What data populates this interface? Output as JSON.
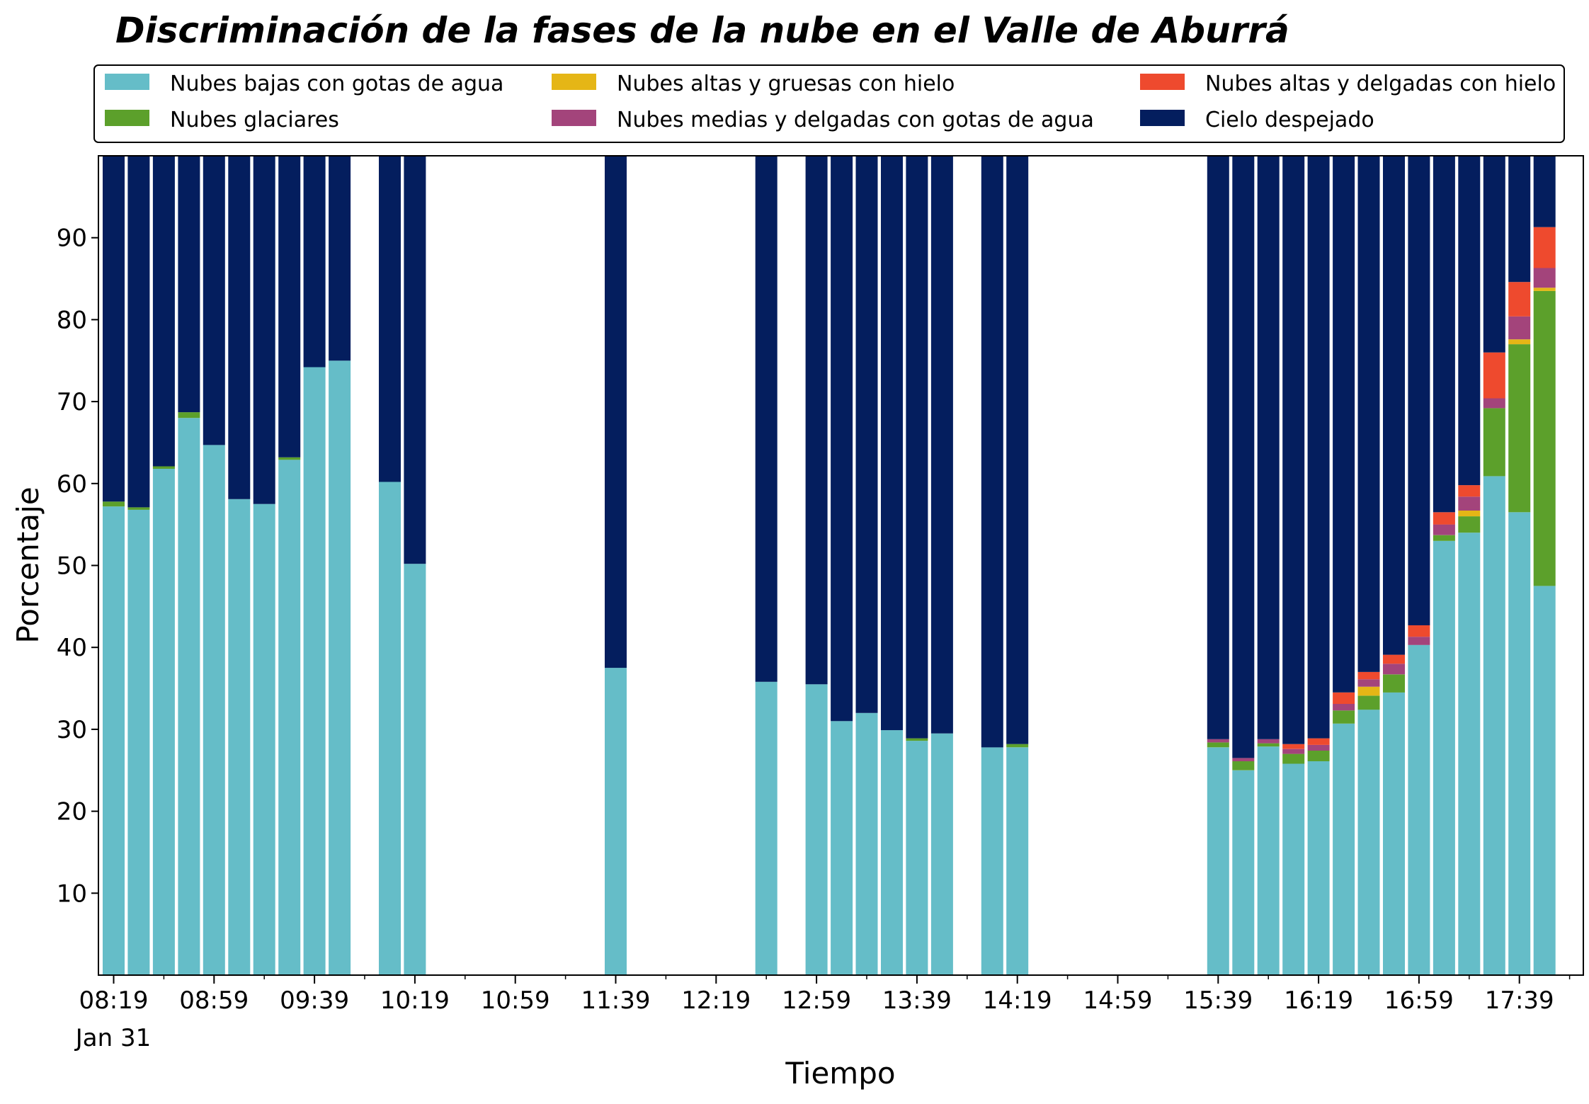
{
  "chart_data": {
    "type": "bar",
    "stacked": true,
    "title": "Discriminación de la fases de la nube en el Valle de Aburrá",
    "xlabel": "Tiempo",
    "ylabel": "Porcentaje",
    "ylim": [
      0,
      100
    ],
    "yticks": [
      10,
      20,
      30,
      40,
      50,
      60,
      70,
      80,
      90
    ],
    "xlim": [
      0,
      59
    ],
    "x_date_label": "Jan 31",
    "x_major_ticks": [
      {
        "index": 0,
        "label": "08:19"
      },
      {
        "index": 4,
        "label": "08:59"
      },
      {
        "index": 8,
        "label": "09:39"
      },
      {
        "index": 12,
        "label": "10:19"
      },
      {
        "index": 16,
        "label": "10:59"
      },
      {
        "index": 20,
        "label": "11:39"
      },
      {
        "index": 24,
        "label": "12:19"
      },
      {
        "index": 28,
        "label": "12:59"
      },
      {
        "index": 32,
        "label": "13:39"
      },
      {
        "index": 36,
        "label": "14:19"
      },
      {
        "index": 40,
        "label": "14:59"
      },
      {
        "index": 44,
        "label": "15:39"
      },
      {
        "index": 48,
        "label": "16:19"
      },
      {
        "index": 52,
        "label": "16:59"
      },
      {
        "index": 56,
        "label": "17:39"
      }
    ],
    "x_minor_ticks": [
      2,
      6,
      10,
      14,
      18,
      22,
      26,
      30,
      34,
      38,
      42,
      46,
      50,
      54,
      58
    ],
    "grid": false,
    "legend_position": "top",
    "bar_positions": [
      0,
      1,
      2,
      3,
      4,
      5,
      6,
      7,
      8,
      9,
      11,
      12,
      20,
      26,
      28,
      29,
      30,
      31,
      32,
      33,
      35,
      36,
      44,
      45,
      46,
      47,
      48,
      49,
      50,
      51,
      52,
      53,
      54,
      55,
      56,
      57
    ],
    "series": [
      {
        "name": "Nubes bajas con gotas de agua",
        "color": "#65bdc8",
        "values": [
          57.2,
          56.8,
          61.8,
          68.0,
          64.7,
          58.1,
          57.5,
          62.9,
          74.2,
          75.0,
          60.2,
          50.2,
          37.5,
          35.8,
          35.5,
          31.0,
          32.0,
          29.9,
          28.6,
          29.5,
          27.8,
          27.8,
          27.8,
          25.0,
          27.9,
          25.8,
          26.1,
          30.7,
          32.4,
          34.5,
          40.3,
          53.0,
          54.0,
          60.9,
          56.5,
          47.5
        ]
      },
      {
        "name": "Nubes glaciares",
        "color": "#5ca02b",
        "values": [
          0.6,
          0.3,
          0.3,
          0.7,
          0,
          0,
          0,
          0.3,
          0,
          0,
          0,
          0,
          0,
          0,
          0,
          0,
          0,
          0,
          0.3,
          0,
          0,
          0.4,
          0.6,
          1.1,
          0.4,
          1.2,
          1.3,
          1.6,
          1.7,
          2.2,
          0,
          0.7,
          2.0,
          8.3,
          20.5,
          36.0
        ]
      },
      {
        "name": "Nubes altas y gruesas con hielo",
        "color": "#e5b616",
        "values": [
          0,
          0,
          0,
          0,
          0,
          0,
          0,
          0,
          0,
          0,
          0,
          0,
          0,
          0,
          0,
          0,
          0,
          0,
          0,
          0,
          0,
          0,
          0,
          0,
          0,
          0,
          0,
          0,
          1.1,
          0,
          0,
          0,
          0.7,
          0,
          0.6,
          0.4
        ]
      },
      {
        "name": "Nubes medias y delgadas con gotas de agua",
        "color": "#a3447b",
        "values": [
          0,
          0,
          0,
          0,
          0,
          0,
          0,
          0,
          0,
          0,
          0,
          0,
          0,
          0,
          0,
          0,
          0,
          0,
          0,
          0,
          0,
          0,
          0.4,
          0.4,
          0.5,
          0.6,
          0.7,
          0.8,
          0.9,
          1.3,
          1.0,
          1.3,
          1.7,
          1.2,
          2.8,
          2.4
        ]
      },
      {
        "name": "Nubes altas y delgadas con hielo",
        "color": "#ee4a2e",
        "values": [
          0,
          0,
          0,
          0,
          0,
          0,
          0,
          0,
          0,
          0,
          0,
          0,
          0,
          0,
          0,
          0,
          0,
          0,
          0,
          0,
          0,
          0,
          0,
          0,
          0,
          0.6,
          0.8,
          1.4,
          0.9,
          1.1,
          1.4,
          1.5,
          1.4,
          5.6,
          4.2,
          5.0
        ]
      },
      {
        "name": "Cielo despejado",
        "color": "#041e5e",
        "values": [
          42.2,
          42.9,
          37.9,
          31.3,
          35.3,
          41.9,
          42.5,
          36.8,
          25.8,
          25.0,
          39.8,
          49.8,
          62.5,
          64.2,
          64.5,
          69.0,
          68.0,
          70.1,
          71.1,
          70.5,
          72.2,
          71.8,
          71.2,
          73.5,
          71.2,
          71.8,
          71.1,
          65.5,
          63.0,
          60.9,
          57.3,
          43.5,
          40.2,
          24.0,
          15.4,
          8.7
        ]
      }
    ]
  }
}
